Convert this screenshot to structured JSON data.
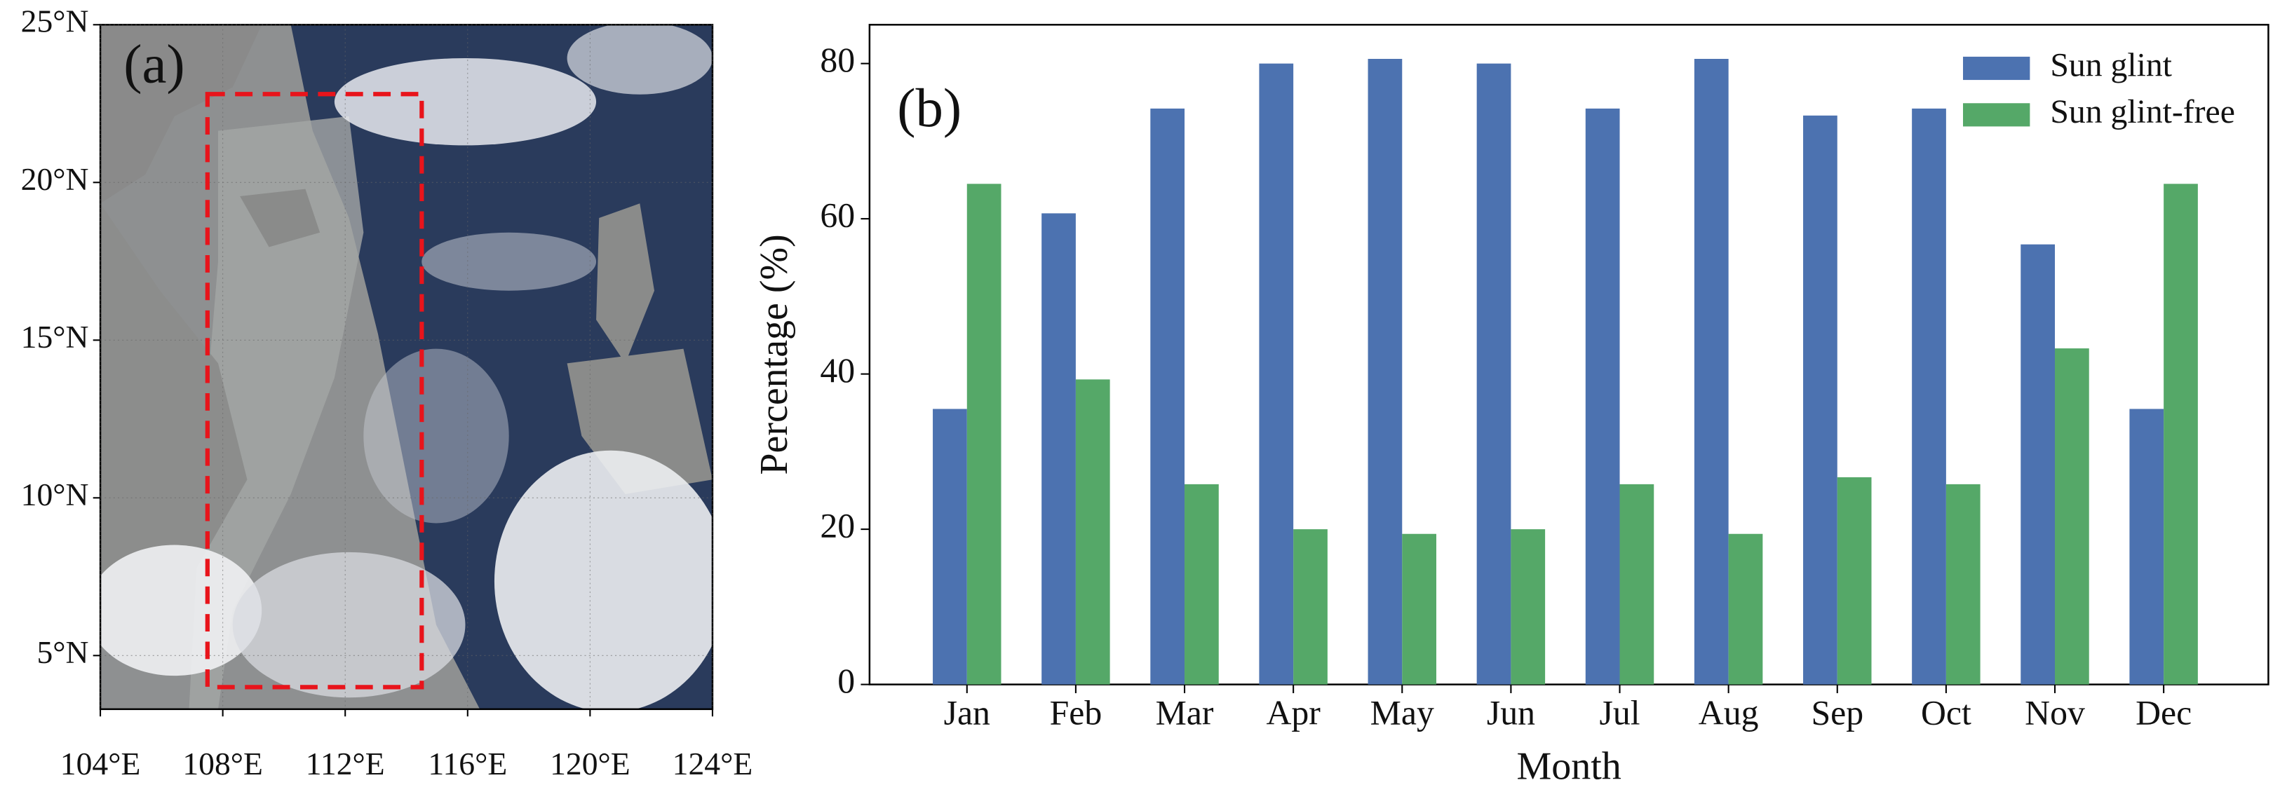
{
  "chart_data": [
    {
      "type": "map",
      "label": "(a)",
      "xlim": [
        104,
        124
      ],
      "ylim": [
        3.3,
        25
      ],
      "xticks": [
        {
          "value": 104,
          "label": "104°E"
        },
        {
          "value": 108,
          "label": "108°E"
        },
        {
          "value": 112,
          "label": "112°E"
        },
        {
          "value": 116,
          "label": "116°E"
        },
        {
          "value": 120,
          "label": "120°E"
        },
        {
          "value": 124,
          "label": "124°E"
        }
      ],
      "yticks": [
        {
          "value": 5,
          "label": "5°N"
        },
        {
          "value": 10,
          "label": "10°N"
        },
        {
          "value": 15,
          "label": "15°N"
        },
        {
          "value": 20,
          "label": "20°N"
        },
        {
          "value": 25,
          "label": "25°N"
        }
      ],
      "region": {
        "x": [
          107.5,
          114.5
        ],
        "y": [
          4,
          22.8
        ],
        "color": "#e8141b"
      }
    },
    {
      "type": "bar",
      "label": "(b)",
      "xlabel": "Month",
      "ylabel": "Percentage (%)",
      "categories": [
        "Jan",
        "Feb",
        "Mar",
        "Apr",
        "May",
        "Jun",
        "Jul",
        "Aug",
        "Sep",
        "Oct",
        "Nov",
        "Dec"
      ],
      "series": [
        {
          "name": "Sun glint",
          "color": "#4c72b0",
          "values": [
            35.5,
            60.7,
            74.2,
            80,
            80.6,
            80,
            74.2,
            80.6,
            73.3,
            74.2,
            56.7,
            35.5
          ]
        },
        {
          "name": "Sun glint-free",
          "color": "#55a868",
          "values": [
            64.5,
            39.3,
            25.8,
            20,
            19.4,
            20,
            25.8,
            19.4,
            26.7,
            25.8,
            43.3,
            64.5
          ]
        }
      ],
      "ylim": [
        0,
        85
      ],
      "yticks": [
        0,
        20,
        40,
        60,
        80
      ],
      "legend": "upper right"
    }
  ]
}
